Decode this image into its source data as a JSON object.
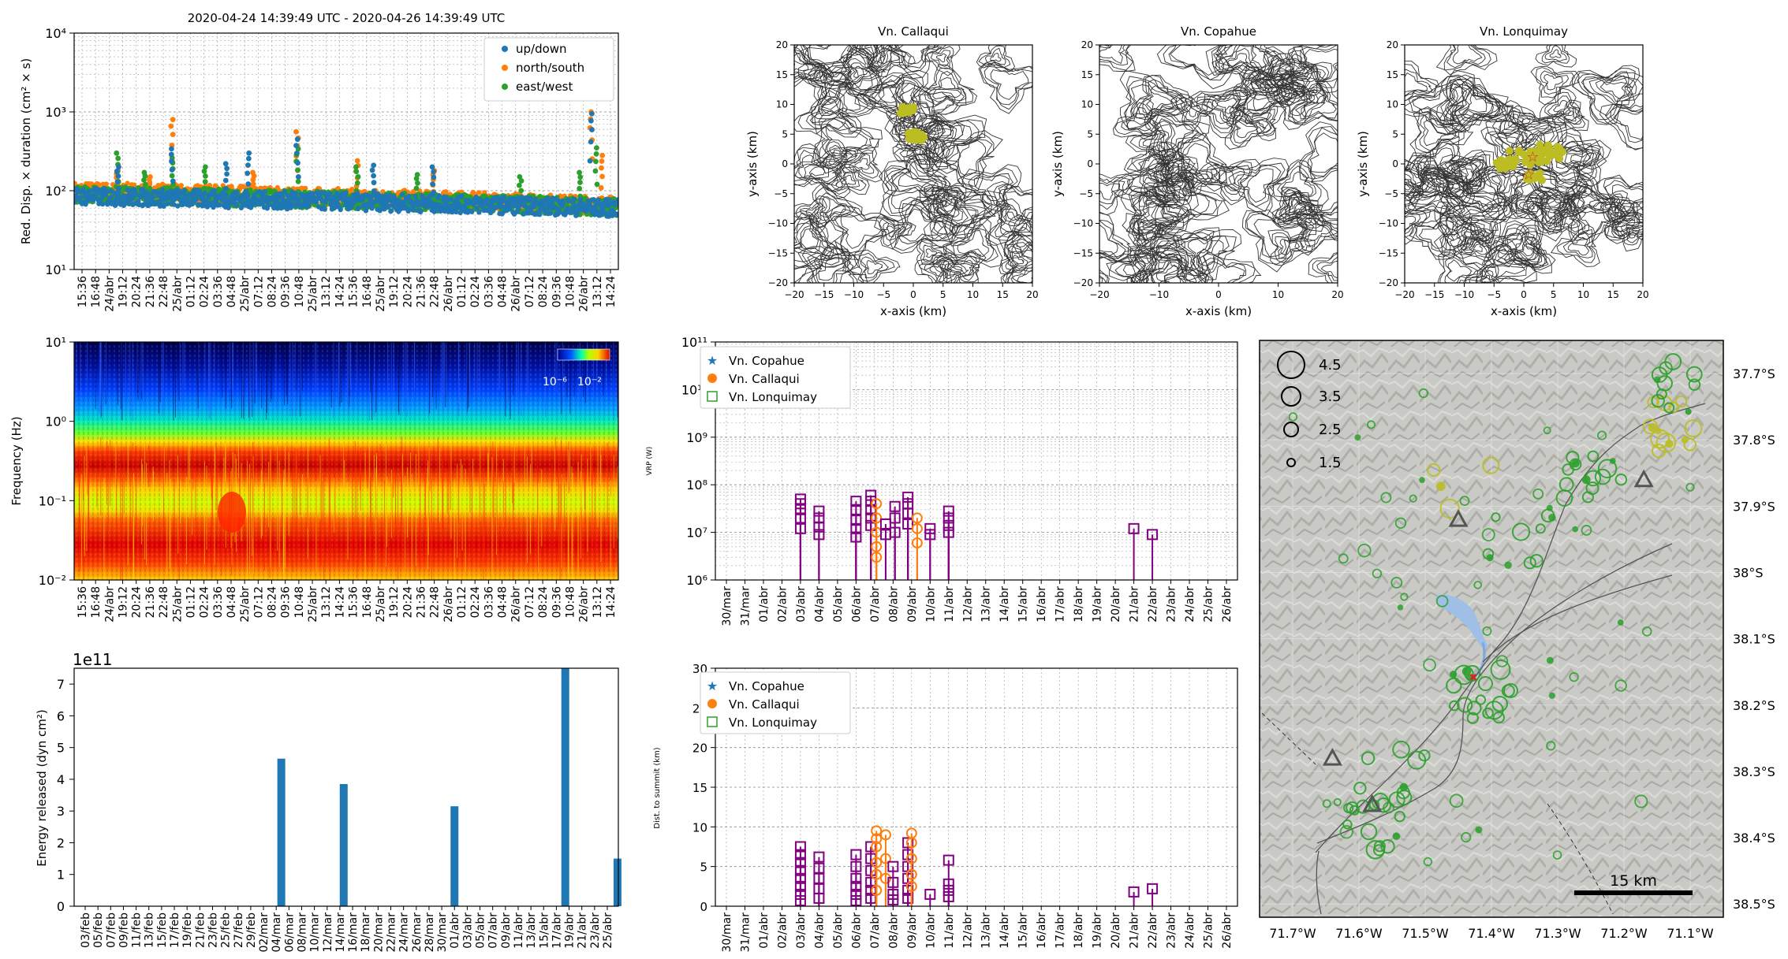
{
  "colors": {
    "updown": "#1f77b4",
    "northsouth": "#ff7f0e",
    "eastwest": "#2ca02c",
    "copahue": "#1f77b4",
    "callaqui": "#ff7f0e",
    "lonquimay": "#2ca02c",
    "purple": "#800080",
    "energy": "#1f77b4",
    "yellow_event": "#bcbd22",
    "red_event": "#d62728",
    "lake": "#9fbfe6"
  },
  "hour_ticks": [
    "15:36",
    "16:48",
    "24/abr",
    "19:12",
    "20:24",
    "21:36",
    "22:48",
    "25/abr",
    "01:12",
    "02:24",
    "03:36",
    "04:48",
    "25/abr",
    "07:12",
    "08:24",
    "09:36",
    "10:48",
    "25/abr",
    "13:12",
    "14:24",
    "15:36",
    "16:48",
    "25/abr",
    "19:12",
    "20:24",
    "21:36",
    "22:48",
    "26/abr",
    "01:12",
    "02:24",
    "03:36",
    "04:48",
    "26/abr",
    "07:12",
    "08:24",
    "09:36",
    "10:48",
    "26/abr",
    "13:12",
    "14:24"
  ],
  "date_ticks": [
    "30/mar",
    "31/mar",
    "01/abr",
    "02/abr",
    "03/abr",
    "04/abr",
    "05/abr",
    "06/abr",
    "07/abr",
    "08/abr",
    "09/abr",
    "10/abr",
    "11/abr",
    "12/abr",
    "13/abr",
    "14/abr",
    "15/abr",
    "16/abr",
    "17/abr",
    "18/abr",
    "19/abr",
    "20/abr",
    "21/abr",
    "22/abr",
    "23/abr",
    "24/abr",
    "25/abr",
    "26/abr"
  ],
  "energy_ticks": [
    "03/feb",
    "05/feb",
    "07/feb",
    "09/feb",
    "11/feb",
    "13/feb",
    "15/feb",
    "17/feb",
    "19/feb",
    "21/feb",
    "23/feb",
    "25/feb",
    "27/feb",
    "29/feb",
    "02/mar",
    "04/mar",
    "06/mar",
    "08/mar",
    "10/mar",
    "12/mar",
    "14/mar",
    "16/mar",
    "18/mar",
    "20/mar",
    "22/mar",
    "24/mar",
    "26/mar",
    "28/mar",
    "30/mar",
    "01/abr",
    "03/abr",
    "05/abr",
    "07/abr",
    "09/abr",
    "11/abr",
    "13/abr",
    "15/abr",
    "17/abr",
    "19/abr",
    "21/abr",
    "23/abr",
    "25/abr"
  ],
  "chart_data": [
    {
      "id": "rsam",
      "type": "scatter",
      "title": "2020-04-24 14:39:49 UTC -  2020-04-26 14:39:49 UTC",
      "ylabel": "Red. Disp. × duration (cm² × s)",
      "yscale": "log",
      "ylim": [
        10,
        10000
      ],
      "ytick_labels": [
        "10¹",
        "10²",
        "10³",
        "10⁴"
      ],
      "series": [
        {
          "name": "up/down",
          "baseline": [
            85,
            60
          ],
          "peaks": [
            [
              0.08,
              200
            ],
            [
              0.18,
              340
            ],
            [
              0.28,
              220
            ],
            [
              0.32,
              300
            ],
            [
              0.41,
              450
            ],
            [
              0.55,
              210
            ],
            [
              0.66,
              200
            ],
            [
              0.95,
              950
            ]
          ]
        },
        {
          "name": "north/south",
          "baseline": [
            100,
            65
          ],
          "peaks": [
            [
              0.08,
              180
            ],
            [
              0.14,
              150
            ],
            [
              0.18,
              800
            ],
            [
              0.33,
              170
            ],
            [
              0.41,
              560
            ],
            [
              0.52,
              240
            ],
            [
              0.66,
              180
            ],
            [
              0.95,
              1000
            ],
            [
              0.97,
              280
            ]
          ]
        },
        {
          "name": "east/west",
          "baseline": [
            90,
            62
          ],
          "peaks": [
            [
              0.08,
              300
            ],
            [
              0.13,
              170
            ],
            [
              0.18,
              260
            ],
            [
              0.24,
              200
            ],
            [
              0.41,
              340
            ],
            [
              0.52,
              200
            ],
            [
              0.63,
              160
            ],
            [
              0.82,
              150
            ],
            [
              0.93,
              170
            ],
            [
              0.96,
              350
            ]
          ]
        }
      ]
    },
    {
      "id": "spectrogram",
      "type": "heatmap",
      "ylabel": "Frequency (Hz)",
      "yscale": "log",
      "ylim": [
        0.01,
        10
      ],
      "ytick_labels": [
        "10⁻²",
        "10⁻¹",
        "10⁰",
        "10¹"
      ],
      "colorbar_labels": [
        "10⁻⁶",
        "10⁻²"
      ]
    },
    {
      "id": "vrp",
      "type": "scatter",
      "ylabel": "VRP (W)",
      "yscale": "log",
      "ylim": [
        1000000,
        100000000000
      ],
      "ytick_labels": [
        "10⁶",
        "10⁷",
        "10⁸",
        "10⁹",
        "10¹⁰",
        "10¹¹"
      ],
      "legend": [
        "Vn. Copahue",
        "Vn. Callaqui",
        "Vn. Lonquimay"
      ],
      "groups": [
        {
          "day": 4.0,
          "color": "purple",
          "values": [
            50000000,
            40000000,
            30000000,
            20000000,
            12000000
          ]
        },
        {
          "day": 5.0,
          "color": "purple",
          "values": [
            28000000,
            20000000,
            13000000,
            9000000
          ]
        },
        {
          "day": 7.0,
          "color": "purple",
          "values": [
            45000000,
            30000000,
            18000000,
            12000000,
            8000000
          ]
        },
        {
          "day": 7.8,
          "color": "purple",
          "values": [
            60000000,
            45000000,
            30000000,
            20000000,
            14000000
          ]
        },
        {
          "day": 8.1,
          "color": "callaqui",
          "values": [
            40000000,
            20000000,
            10000000,
            5000000,
            3000000
          ]
        },
        {
          "day": 8.6,
          "color": "purple",
          "values": [
            15000000,
            9000000
          ]
        },
        {
          "day": 9.1,
          "color": "purple",
          "values": [
            35000000,
            20000000,
            10000000
          ]
        },
        {
          "day": 9.8,
          "color": "purple",
          "values": [
            55000000,
            40000000,
            25000000,
            15000000
          ]
        },
        {
          "day": 10.3,
          "color": "callaqui",
          "values": [
            20000000,
            12000000,
            6000000
          ]
        },
        {
          "day": 11.0,
          "color": "purple",
          "values": [
            12000000,
            9000000
          ]
        },
        {
          "day": 12.0,
          "color": "purple",
          "values": [
            28000000,
            20000000,
            14000000,
            10000000
          ]
        },
        {
          "day": 22.0,
          "color": "purple",
          "values": [
            12000000
          ]
        },
        {
          "day": 23.0,
          "color": "purple",
          "values": [
            9000000
          ]
        }
      ]
    },
    {
      "id": "distance",
      "type": "scatter",
      "ylabel": "Dist. to summit (km)",
      "ylim": [
        0,
        30
      ],
      "ytick_labels": [
        "0",
        "5",
        "10",
        "15",
        "20",
        "25",
        "30"
      ],
      "legend": [
        "Vn. Copahue",
        "Vn. Callaqui",
        "Vn. Lonquimay"
      ],
      "groups": [
        {
          "day": 4.0,
          "color": "purple",
          "values": [
            7.5,
            6.5,
            5.5,
            4.5,
            3.5,
            2.5,
            1.5,
            0.7
          ]
        },
        {
          "day": 5.0,
          "color": "purple",
          "values": [
            6.2,
            4.8,
            3.5,
            2.2,
            1.0
          ]
        },
        {
          "day": 7.0,
          "color": "purple",
          "values": [
            6.5,
            5.0,
            3.5,
            2.5,
            1.5,
            0.7
          ]
        },
        {
          "day": 7.8,
          "color": "purple",
          "values": [
            7.5,
            6.0,
            4.5,
            3.0,
            2.0,
            1.0
          ]
        },
        {
          "day": 8.1,
          "color": "callaqui",
          "values": [
            9.5,
            8.5,
            7.5,
            5.5,
            4.0,
            2.0
          ]
        },
        {
          "day": 8.6,
          "color": "callaqui",
          "values": [
            9.0,
            6.0,
            3.5
          ]
        },
        {
          "day": 9.0,
          "color": "purple",
          "values": [
            5.0,
            3.0,
            1.5,
            0.8
          ]
        },
        {
          "day": 9.8,
          "color": "purple",
          "values": [
            8.0,
            6.5,
            5.0,
            3.5,
            2.0,
            1.0
          ]
        },
        {
          "day": 10.0,
          "color": "callaqui",
          "values": [
            9.2,
            8.0,
            6.0,
            4.0,
            2.5
          ]
        },
        {
          "day": 11.0,
          "color": "purple",
          "values": [
            1.5
          ]
        },
        {
          "day": 12.0,
          "color": "purple",
          "values": [
            5.8,
            2.8,
            2.0,
            1.2
          ]
        },
        {
          "day": 22.0,
          "color": "purple",
          "values": [
            1.8
          ]
        },
        {
          "day": 23.0,
          "color": "purple",
          "values": [
            2.2
          ]
        }
      ]
    },
    {
      "id": "energy",
      "type": "bar",
      "ylabel": "Energy released (dyn cm²)",
      "offset_label": "1e11",
      "ylim": [
        0,
        7.5
      ],
      "ytick_labels": [
        "0",
        "1",
        "2",
        "3",
        "4",
        "5",
        "6",
        "7"
      ],
      "bars": [
        {
          "index": 15.4,
          "value": 4.65
        },
        {
          "index": 20.3,
          "value": 3.85
        },
        {
          "index": 29.0,
          "value": 3.15
        },
        {
          "index": 37.7,
          "value": 7.6
        },
        {
          "index": 41.8,
          "value": 1.5
        }
      ]
    },
    {
      "id": "maps",
      "type": "scatter",
      "xlabel": "x-axis (km)",
      "ylabel": "y-axis (km)",
      "xlim": [
        -20,
        20
      ],
      "ylim": [
        -20,
        20
      ],
      "tick_labels": [
        "−20",
        "−15",
        "−10",
        "−5",
        "0",
        "5",
        "10",
        "15",
        "20"
      ],
      "tick_labels_sparse": [
        "−20",
        "−10",
        "0",
        "10",
        "20"
      ],
      "panels": [
        {
          "title": "Vn. Callaqui",
          "blobs": [
            [
              -1,
              9,
              1.2
            ],
            [
              0.5,
              4.5,
              1.3
            ],
            [
              0,
              5,
              0.9
            ]
          ]
        },
        {
          "title": "Vn. Copahue",
          "blobs": []
        },
        {
          "title": "Vn. Lonquimay",
          "blobs": [
            [
              -3,
              0,
              1.8
            ],
            [
              0,
              1,
              2.6
            ],
            [
              2,
              1,
              2.4
            ],
            [
              5,
              2,
              2.5
            ],
            [
              2,
              -2,
              1.5
            ]
          ],
          "stars": [
            [
              1.5,
              1.2
            ],
            [
              0.8,
              -1.8
            ]
          ]
        }
      ]
    },
    {
      "id": "event_map",
      "type": "scatter",
      "lat_labels": [
        "37.7°S",
        "37.8°S",
        "37.9°S",
        "38°S",
        "38.1°S",
        "38.2°S",
        "38.3°S",
        "38.4°S",
        "38.5°S"
      ],
      "lon_labels": [
        "71.7°W",
        "71.6°W",
        "71.5°W",
        "71.4°W",
        "71.3°W",
        "71.2°W",
        "71.1°W"
      ],
      "size_legend": [
        "4.5",
        "3.5",
        "2.5",
        "1.5"
      ],
      "scale_label": "15 km",
      "volcanoes": [
        [
          -71.45,
          -37.92
        ],
        [
          -71.64,
          -38.28
        ],
        [
          -71.58,
          -38.35
        ],
        [
          -71.17,
          -37.86
        ]
      ]
    }
  ]
}
